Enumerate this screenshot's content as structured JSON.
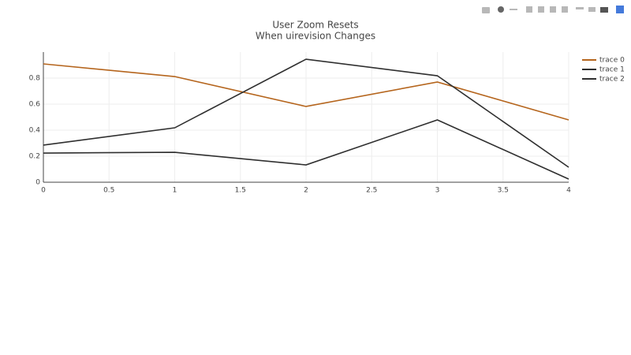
{
  "chart_data": {
    "type": "line",
    "title": "User Zoom Resets",
    "subtitle": "When uirevision Changes",
    "x": [
      0,
      1,
      2,
      3,
      4
    ],
    "series": [
      {
        "name": "trace 0",
        "color": "#b5651d",
        "values": [
          0.909,
          0.812,
          0.582,
          0.77,
          0.479
        ]
      },
      {
        "name": "trace 1",
        "color": "#2f2f2f",
        "values": [
          0.285,
          0.418,
          0.945,
          0.818,
          0.115
        ]
      },
      {
        "name": "trace 2",
        "color": "#2f2f2f",
        "values": [
          0.224,
          0.23,
          0.133,
          0.479,
          0.024
        ]
      }
    ],
    "xlim": [
      0,
      4
    ],
    "xticks": [
      0,
      0.5,
      1,
      1.5,
      2,
      2.5,
      3,
      3.5,
      4
    ],
    "ylim": [
      0,
      1
    ],
    "yticks": [
      0,
      0.2,
      0.4,
      0.6,
      0.8
    ],
    "grid": true,
    "legend": "top-right"
  }
}
